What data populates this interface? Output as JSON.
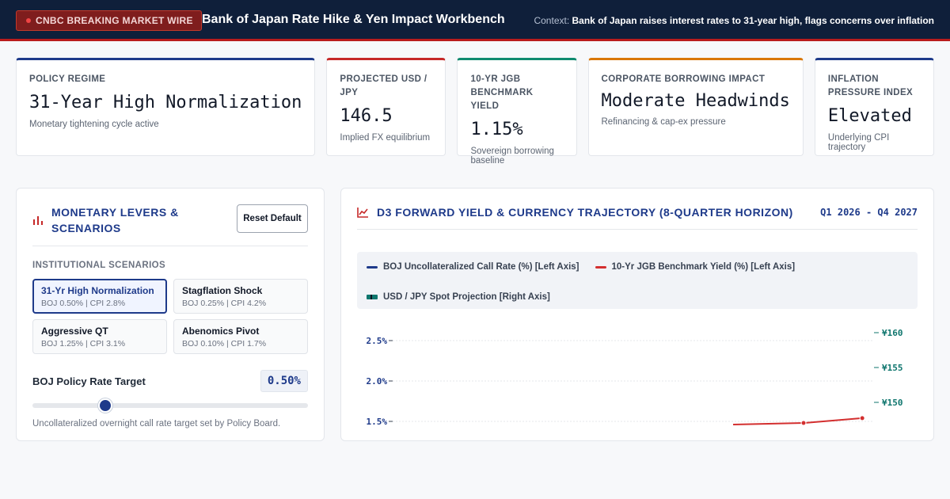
{
  "header": {
    "badge": "CNBC BREAKING MARKET WIRE",
    "title": "Bank of Japan Rate Hike & Yen Impact Workbench",
    "context_label": "Context:",
    "context_text": "Bank of Japan raises interest rates to 31-year high, flags concerns over inflation"
  },
  "kpis": [
    {
      "label": "POLICY REGIME",
      "value": "31-Year High Normalization",
      "sub": "Monetary tightening cycle active",
      "accent": "#1e3a8a"
    },
    {
      "label": "PROJECTED USD / JPY",
      "value": "146.5",
      "sub": "Implied FX equilibrium",
      "accent": "#c62828"
    },
    {
      "label": "10-YR JGB BENCHMARK YIELD",
      "value": "1.15%",
      "sub": "Sovereign borrowing baseline",
      "accent": "#0f8a6f"
    },
    {
      "label": "CORPORATE BORROWING IMPACT",
      "value": "Moderate Headwinds",
      "sub": "Refinancing & cap-ex pressure",
      "accent": "#d97706"
    },
    {
      "label": "INFLATION PRESSURE INDEX",
      "value": "Elevated",
      "sub": "Underlying CPI trajectory",
      "accent": "#1e3a8a"
    }
  ],
  "levers": {
    "title": "MONETARY LEVERS & SCENARIOS",
    "reset_label": "Reset Default",
    "section_label": "INSTITUTIONAL SCENARIOS",
    "scenarios": [
      {
        "name": "31-Yr High Normalization",
        "meta": "BOJ 0.50% | CPI 2.8%"
      },
      {
        "name": "Stagflation Shock",
        "meta": "BOJ 0.25% | CPI 4.2%"
      },
      {
        "name": "Aggressive QT",
        "meta": "BOJ 1.25% | CPI 3.1%"
      },
      {
        "name": "Abenomics Pivot",
        "meta": "BOJ 0.10% | CPI 1.7%"
      }
    ],
    "policy_rate_label": "BOJ Policy Rate Target",
    "policy_rate_value": "0.50%",
    "policy_rate_fraction": 0.263,
    "policy_rate_help": "Uncollateralized overnight call rate target set by Policy Board."
  },
  "chart": {
    "title": "D3 FORWARD YIELD & CURRENCY TRAJECTORY (8-QUARTER HORIZON)",
    "range": "Q1 2026 - Q4 2027",
    "legend": [
      {
        "label": "BOJ Uncollateralized Call Rate (%) [Left Axis]",
        "color": "#1e3a8a"
      },
      {
        "label": "10-Yr JGB Benchmark Yield (%) [Left Axis]",
        "color": "#d32f2f"
      },
      {
        "label": "USD / JPY Spot Projection [Right Axis]",
        "color": "#0f766e"
      }
    ]
  },
  "chart_data": {
    "type": "line",
    "title": "D3 FORWARD YIELD & CURRENCY TRAJECTORY (8-QUARTER HORIZON)",
    "y_left_ticks": [
      "2.5%",
      "2.0%",
      "1.5%"
    ],
    "y_left_values": [
      2.5,
      2.0,
      1.5
    ],
    "y_right_ticks": [
      "¥160",
      "¥155",
      "¥150"
    ],
    "y_right_values": [
      160,
      155,
      150
    ],
    "series": [
      {
        "name": "10-Yr JGB Benchmark Yield (%) [Left Axis]",
        "axis": "left",
        "color": "#d32f2f",
        "points": [
          [
            7,
            1.48
          ],
          [
            8,
            1.54
          ]
        ]
      }
    ],
    "x_domain": [
      0,
      8.2
    ],
    "grid": true
  }
}
